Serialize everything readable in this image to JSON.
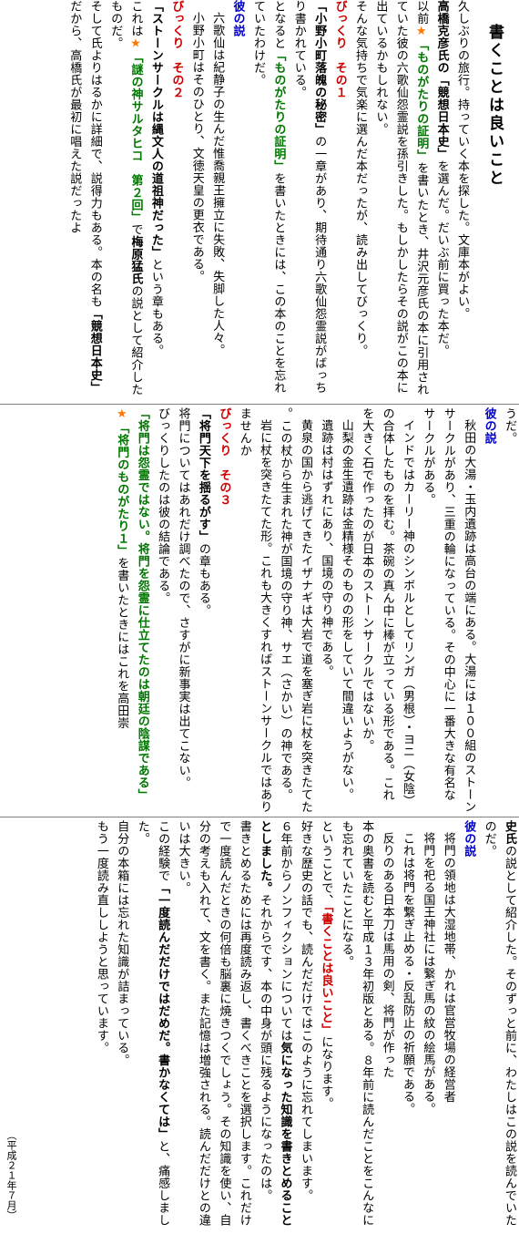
{
  "title": "書くことは良いこと",
  "band1": {
    "p1": "久しぶりの旅行。持っていく本を探した。文庫本がよい。",
    "p2a": "高橋克彦氏の",
    "p2b": "「競想日本史」",
    "p2c": "を選んだ。だいぶ前に買った本だ。",
    "p3a": "以前",
    "p3b": "「ものがたりの証明」",
    "p3c": "を書いたとき、井沢元彦氏の本に引用されていた彼の六歌仙怨霊説を孫引きした。もしかしたらその説がこの本に出ているかもしれない。",
    "p4": "そんな気持ちで気楽に選んだ本だったが、読み出してびっくり。",
    "s1a": "びっくり　その１",
    "s1b": "「小野小町落魄の秘密」",
    "s1c": "の一章があり、期待通り六歌仙怨霊説がばっちり書かれている。",
    "s1d": "となると",
    "s1e": "「ものがたりの証明」",
    "s1f": "を書いたときには、この本のことを忘れていたわけだ。",
    "kare1": "彼の説",
    "k1a": "六歌仙は紀静子の生んだ惟喬親王擁立に失敗、失脚した人々。",
    "k1b": "小野小町はそのひとり、文徳天皇の更衣である。",
    "s2a": "びっくり　その２",
    "s2b": "「ストーンサークルは縄文人の道祖神だった」",
    "s2c": "という章もある。",
    "s2d": "これは",
    "s2e": "「謎の神サルタヒコ　第２回」",
    "s2f": "で",
    "s2g": "梅原猛氏",
    "s2h": "の説として紹介したものだ。",
    "s2i": "そして氏よりはるかに詳細で、説得力もある。本の名も",
    "s2j": "「競想日本史」",
    "s2k": "だから、高橋氏が最初に唱えた説だったよ"
  },
  "band2": {
    "u1": "うだ。",
    "kare2": "彼の説",
    "k2a": "秋田の大湯・玉内遺跡は高台の端にある。大湯には１００組のストーンサークルがあり、三重の輪になっている。その中心に一番大きな有名なサークルがある。",
    "k2b": "インドではカーリー神のシンボルとしてリンガ（男根）・ヨニ（女陰）の合体したものを拝む。茶碗の真ん中に棒が立っている形である。これを大きく石で作ったのが日本のストーンサークルではないか。",
    "k2c": "山梨の金生遺跡は金精様そのものの形をしていて間違いようがない。",
    "k2d": "遺跡は村はずれにあり、国境の守り神である。",
    "k2e": "黄泉の国から逃げてきたイザナギは大岩で道を塞ぎ岩に杖を突きたてた。この杖から生まれた神が国境の守り神、サエ（さかい）の神である。",
    "k2f": "岩に杖を突きたてた形。これも大きくすればストーンサークルではありませんか",
    "s3a": "びっくり　その３",
    "s3b": "「将門天下を揺るがす」",
    "s3c": "の章もある。",
    "s3d": "将門についてはあれだけ調べたので、さすがに新事実は出てこない。",
    "s3e": "びっくりしたのは彼の結論である。",
    "s3f": "「将門は怨霊ではない。将門を怨霊に仕立てたのは朝廷の陰謀である」",
    "s3g": "「将門のものがたり１」",
    "s3h": "を書いたときにはこれを高田崇"
  },
  "band3": {
    "t1a": "史氏",
    "t1b": "の説として紹介した。そのずっと前に、わたしはこの説を読んでいたのだ。",
    "kare3": "彼の説",
    "k3a": "将門の領地は大湿地帯、かれは官営牧場の経営者",
    "k3b": "将門を祀る国王神社には繋ぎ馬の紋の絵馬がある。",
    "k3c": "これは将門を繋ぎ止める・反乱防止の祈願である。",
    "k3d": "反りのある日本刀は馬用の剣、将門が作った",
    "m1": "本の奥書を読むと平成１３年初版とある。８年前に読んだことをこんなにも忘れていたことになる。",
    "m2a": "ということで、",
    "m2b": "「書くことは良いこと」",
    "m2c": "になります。",
    "m3a": "好きな歴史の話でも、読んだだけではこのように忘れてしまいます。",
    "m3b": "６年前からノンフィクションについては",
    "m3c": "気になった知識を書きとめることとしました。",
    "m3d": "それからです、本の中身が頭に残るようになったのは。",
    "m3e": "書きとめるためには再度読み返し、書くべきことを選択します。これだけで一度読んだときの何倍も脳裏に焼きつくでしょう。その知識を使い、自分の考えも入れて、文を書く。また記憶は増強される。読んだだけとの違いは大きい。",
    "m4a": "この経験で",
    "m4b": "「一度読んだだけではだめだ。書かなくては」",
    "m4c": "と、痛感しました。",
    "m5a": "自分の本箱には忘れた知識が詰まっている。",
    "m5b": "もう一度読み直ししようと思っています。",
    "date": "（平成２１年７月）"
  },
  "colors": {
    "heading": "#cc0000",
    "term": "#007700",
    "star": "#ff7700",
    "divider": "#808080"
  }
}
